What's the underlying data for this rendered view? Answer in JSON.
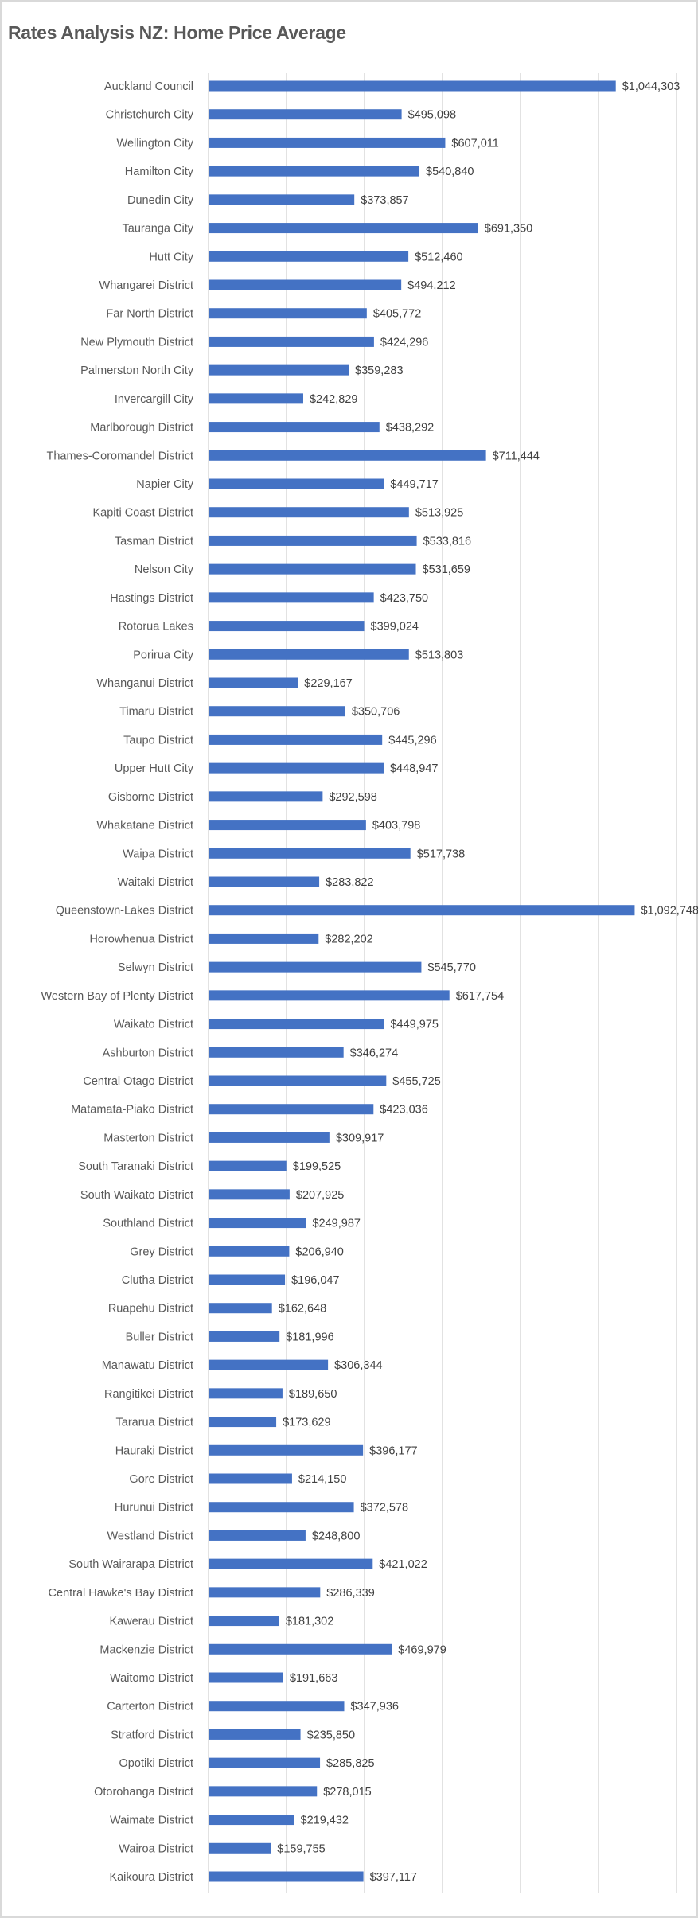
{
  "chart_data": {
    "type": "bar",
    "orientation": "horizontal",
    "title": "Rates Analysis NZ: Home Price Average",
    "xlabel": "",
    "ylabel": "",
    "xlim": [
      0,
      1200000
    ],
    "gridline_step": 200000,
    "grid": true,
    "legend": "none",
    "value_prefix": "$",
    "bar_color": "#4472C4",
    "categories": [
      "Auckland Council",
      "Christchurch City",
      "Wellington City",
      "Hamilton City",
      "Dunedin City",
      "Tauranga City",
      "Hutt City",
      "Whangarei District",
      "Far North District",
      "New Plymouth District",
      "Palmerston North City",
      "Invercargill City",
      "Marlborough District",
      "Thames-Coromandel District",
      "Napier City",
      "Kapiti Coast District",
      "Tasman District",
      "Nelson City",
      "Hastings District",
      "Rotorua Lakes",
      "Porirua City",
      "Whanganui District",
      "Timaru District",
      "Taupo District",
      "Upper Hutt City",
      "Gisborne District",
      "Whakatane District",
      "Waipa District",
      "Waitaki District",
      "Queenstown-Lakes District",
      "Horowhenua District",
      "Selwyn District",
      "Western Bay of Plenty District",
      "Waikato District",
      "Ashburton District",
      "Central Otago District",
      "Matamata-Piako District",
      "Masterton District",
      "South Taranaki District",
      "South Waikato District",
      "Southland District",
      "Grey District",
      "Clutha District",
      "Ruapehu District",
      "Buller District",
      "Manawatu District",
      "Rangitikei District",
      "Tararua District",
      "Hauraki District",
      "Gore District",
      "Hurunui District",
      "Westland District",
      "South Wairarapa District",
      "Central Hawke's Bay District",
      "Kawerau District",
      "Mackenzie District",
      "Waitomo District",
      "Carterton District",
      "Stratford District",
      "Opotiki District",
      "Otorohanga District",
      "Waimate District",
      "Wairoa District",
      "Kaikoura District"
    ],
    "values": [
      1044303,
      495098,
      607011,
      540840,
      373857,
      691350,
      512460,
      494212,
      405772,
      424296,
      359283,
      242829,
      438292,
      711444,
      449717,
      513925,
      533816,
      531659,
      423750,
      399024,
      513803,
      229167,
      350706,
      445296,
      448947,
      292598,
      403798,
      517738,
      283822,
      1092748,
      282202,
      545770,
      617754,
      449975,
      346274,
      455725,
      423036,
      309917,
      199525,
      207925,
      249987,
      206940,
      196047,
      162648,
      181996,
      306344,
      189650,
      173629,
      396177,
      214150,
      372578,
      248800,
      421022,
      286339,
      181302,
      469979,
      191663,
      347936,
      235850,
      285825,
      278015,
      219432,
      159755,
      397117
    ],
    "data_labels": [
      "$1,044,303",
      "$495,098",
      "$607,011",
      "$540,840",
      "$373,857",
      "$691,350",
      "$512,460",
      "$494,212",
      "$405,772",
      "$424,296",
      "$359,283",
      "$242,829",
      "$438,292",
      "$711,444",
      "$449,717",
      "$513,925",
      "$533,816",
      "$531,659",
      "$423,750",
      "$399,024",
      "$513,803",
      "$229,167",
      "$350,706",
      "$445,296",
      "$448,947",
      "$292,598",
      "$403,798",
      "$517,738",
      "$283,822",
      "$1,092,748",
      "$282,202",
      "$545,770",
      "$617,754",
      "$449,975",
      "$346,274",
      "$455,725",
      "$423,036",
      "$309,917",
      "$199,525",
      "$207,925",
      "$249,987",
      "$206,940",
      "$196,047",
      "$162,648",
      "$181,996",
      "$306,344",
      "$189,650",
      "$173,629",
      "$396,177",
      "$214,150",
      "$372,578",
      "$248,800",
      "$421,022",
      "$286,339",
      "$181,302",
      "$469,979",
      "$191,663",
      "$347,936",
      "$235,850",
      "$285,825",
      "$278,015",
      "$219,432",
      "$159,755",
      "$397,117"
    ]
  }
}
